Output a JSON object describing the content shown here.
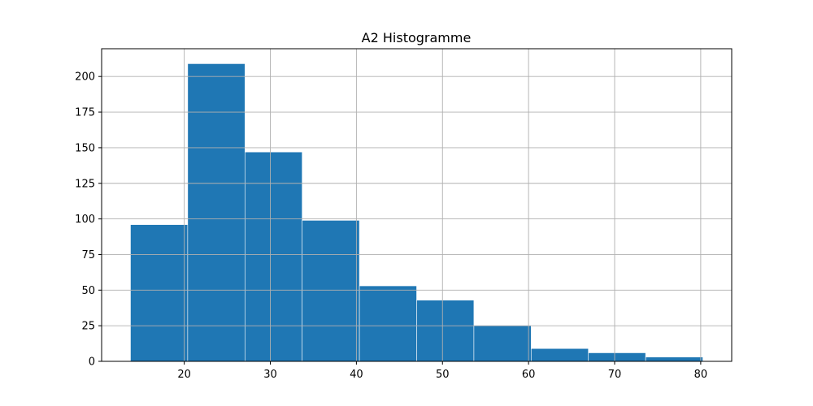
{
  "chart_data": {
    "type": "bar",
    "title": "A2 Histogramme",
    "xlabel": "",
    "ylabel": "",
    "bins": [
      {
        "x0": 13.75,
        "x1": 20.4,
        "count": 96
      },
      {
        "x0": 20.4,
        "x1": 27.05,
        "count": 209
      },
      {
        "x0": 27.05,
        "x1": 33.7,
        "count": 147
      },
      {
        "x0": 33.7,
        "x1": 40.35,
        "count": 99
      },
      {
        "x0": 40.35,
        "x1": 47.0,
        "count": 53
      },
      {
        "x0": 47.0,
        "x1": 53.65,
        "count": 43
      },
      {
        "x0": 53.65,
        "x1": 60.3,
        "count": 25
      },
      {
        "x0": 60.3,
        "x1": 66.95,
        "count": 9
      },
      {
        "x0": 66.95,
        "x1": 73.6,
        "count": 6
      },
      {
        "x0": 73.6,
        "x1": 80.25,
        "count": 3
      }
    ],
    "xlim": [
      10.4,
      83.6
    ],
    "ylim": [
      0,
      219.5
    ],
    "xticks": [
      20,
      30,
      40,
      50,
      60,
      70,
      80
    ],
    "yticks": [
      0,
      25,
      50,
      75,
      100,
      125,
      150,
      175,
      200
    ],
    "grid": true,
    "bar_color": "#1f77b4",
    "grid_color": "#b0b0b0"
  }
}
